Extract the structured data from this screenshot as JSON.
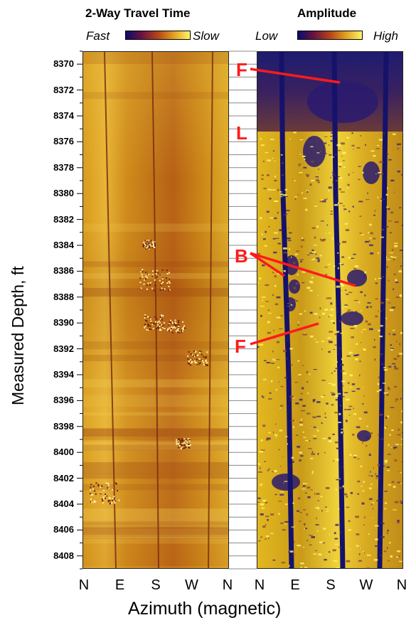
{
  "panels": {
    "left": {
      "title": "2-Way  Travel Time",
      "scale_low": "Fast",
      "scale_high": "Slow",
      "colormap": [
        "#0b0c6e",
        "#6b1340",
        "#b5431a",
        "#e0a020",
        "#fff36a"
      ]
    },
    "right": {
      "title": "Amplitude",
      "scale_low": "Low",
      "scale_high": "High",
      "colormap": [
        "#0b0c6e",
        "#6b1340",
        "#b5431a",
        "#e0a020",
        "#fff36a"
      ]
    }
  },
  "axes": {
    "y_label": "Measured Depth, ft",
    "x_label": "Azimuth (magnetic)",
    "depth_ticks": [
      "8370",
      "8372",
      "8374",
      "8376",
      "8378",
      "8380",
      "8382",
      "8384",
      "8386",
      "8388",
      "8390",
      "8392",
      "8394",
      "8396",
      "8398",
      "8400",
      "8402",
      "8404",
      "8406",
      "8408"
    ],
    "depth_range": [
      8369,
      8409
    ],
    "azimuth_ticks": [
      "N",
      "E",
      "S",
      "W",
      "N"
    ],
    "azimuth_ticks_right": [
      "N",
      "E",
      "S",
      "W",
      "N"
    ]
  },
  "annotations": [
    {
      "label": "F",
      "depth": 8370.5
    },
    {
      "label": "L",
      "depth": 8376
    },
    {
      "label": "B",
      "depth": 8385.5
    },
    {
      "label": "F",
      "depth": 8391.5
    }
  ],
  "colors": {
    "annotation": "#ff1a1a"
  }
}
